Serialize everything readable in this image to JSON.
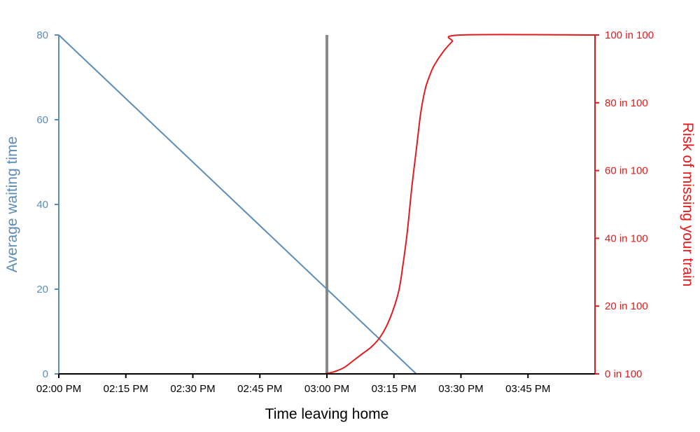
{
  "chart_data": {
    "type": "line",
    "xlabel": "Time leaving home",
    "ylabel_left": "Average waiting time",
    "ylabel_right": "Risk of missing your train",
    "x_domain_minutes_after_2pm": [
      0,
      120
    ],
    "x_ticks": [
      {
        "label": "02:00 PM",
        "minute": 0
      },
      {
        "label": "02:15 PM",
        "minute": 15
      },
      {
        "label": "02:30 PM",
        "minute": 30
      },
      {
        "label": "02:45 PM",
        "minute": 45
      },
      {
        "label": "03:00 PM",
        "minute": 60
      },
      {
        "label": "03:15 PM",
        "minute": 75
      },
      {
        "label": "03:30 PM",
        "minute": 90
      },
      {
        "label": "03:45 PM",
        "minute": 105
      }
    ],
    "y_left": {
      "range": [
        0,
        80
      ],
      "ticks": [
        {
          "label": "0",
          "value": 0
        },
        {
          "label": "20",
          "value": 20
        },
        {
          "label": "40",
          "value": 40
        },
        {
          "label": "60",
          "value": 60
        },
        {
          "label": "80",
          "value": 80
        }
      ]
    },
    "y_right": {
      "range": [
        0,
        100
      ],
      "ticks": [
        {
          "label": "0 in 100",
          "value": 0
        },
        {
          "label": "20 in 100",
          "value": 20
        },
        {
          "label": "40 in 100",
          "value": 40
        },
        {
          "label": "60 in 100",
          "value": 60
        },
        {
          "label": "80 in 100",
          "value": 80
        },
        {
          "label": "100 in 100",
          "value": 100
        }
      ]
    },
    "marker_minute": 60,
    "series": [
      {
        "axis": "left",
        "color": "#5b8db8",
        "points": [
          [
            0,
            80
          ],
          [
            80,
            0
          ],
          [
            120,
            0
          ]
        ]
      },
      {
        "axis": "right",
        "color": "#e31a1c",
        "points": [
          [
            0,
            0
          ],
          [
            55,
            0
          ],
          [
            60,
            0.2
          ],
          [
            62,
            0.8
          ],
          [
            64,
            2
          ],
          [
            66,
            4
          ],
          [
            68,
            6
          ],
          [
            70,
            8
          ],
          [
            72,
            11
          ],
          [
            74,
            16
          ],
          [
            76,
            24
          ],
          [
            77,
            32
          ],
          [
            78,
            42
          ],
          [
            79,
            55
          ],
          [
            80,
            66
          ],
          [
            81,
            77
          ],
          [
            82,
            84
          ],
          [
            83,
            88
          ],
          [
            84,
            91
          ],
          [
            86,
            95
          ],
          [
            88,
            98
          ],
          [
            90,
            100
          ],
          [
            120,
            100
          ]
        ]
      }
    ],
    "colors": {
      "left_axis": "#5b8db8",
      "right_axis": "#e31a1c",
      "marker": "#888888",
      "bottom_axis": "#000000"
    }
  }
}
